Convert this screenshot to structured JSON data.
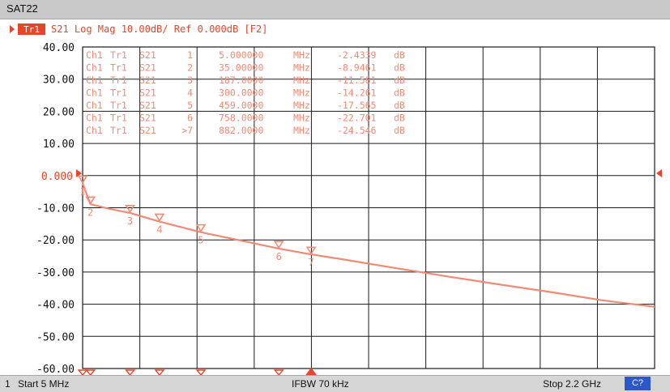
{
  "window": {
    "title": "SAT22"
  },
  "trace_header": {
    "trace_id": "Tr1",
    "text": "S21 Log Mag 10.00dB/ Ref 0.000dB [F2]"
  },
  "marker_table": [
    {
      "ch": "Ch1",
      "tr": "Tr1",
      "param": "S21",
      "num": "1",
      "freq": "5.000000",
      "unit": "MHz",
      "value": "-2.4339",
      "vunit": "dB"
    },
    {
      "ch": "Ch1",
      "tr": "Tr1",
      "param": "S21",
      "num": "2",
      "freq": "35.00000",
      "unit": "MHz",
      "value": "-8.9461",
      "vunit": "dB"
    },
    {
      "ch": "Ch1",
      "tr": "Tr1",
      "param": "S21",
      "num": "3",
      "freq": "187.0000",
      "unit": "MHz",
      "value": "-11.581",
      "vunit": "dB"
    },
    {
      "ch": "Ch1",
      "tr": "Tr1",
      "param": "S21",
      "num": "4",
      "freq": "300.0000",
      "unit": "MHz",
      "value": "-14.261",
      "vunit": "dB"
    },
    {
      "ch": "Ch1",
      "tr": "Tr1",
      "param": "S21",
      "num": "5",
      "freq": "459.0000",
      "unit": "MHz",
      "value": "-17.565",
      "vunit": "dB"
    },
    {
      "ch": "Ch1",
      "tr": "Tr1",
      "param": "S21",
      "num": "6",
      "freq": "758.0000",
      "unit": "MHz",
      "value": "-22.701",
      "vunit": "dB"
    },
    {
      "ch": "Ch1",
      "tr": "Tr1",
      "param": "S21",
      "num": ">7",
      "freq": "882.0000",
      "unit": "MHz",
      "value": "-24.546",
      "vunit": "dB"
    }
  ],
  "status_bar": {
    "channel": "1",
    "start": "Start 5 MHz",
    "ifbw": "IFBW 70 kHz",
    "stop": "Stop 2.2 GHz",
    "badge": "C?"
  },
  "colors": {
    "trace": "#f28a74",
    "grid": "#1a1a1a",
    "background": "#ffffff",
    "badge": "#2d56c8"
  },
  "chart_data": {
    "type": "line",
    "y_ticks": [
      "40.00",
      "30.00",
      "20.00",
      "10.00",
      "0.000",
      "-10.00",
      "-20.00",
      "-30.00",
      "-40.00",
      "-50.00",
      "-60.00"
    ],
    "ylim": [
      -60,
      40
    ],
    "y_step": 10,
    "reference_level": 0,
    "x_range_mhz": [
      5,
      2200
    ],
    "x_divisions": 10,
    "grid": true,
    "series": [
      {
        "x": [
          5,
          35,
          100,
          187,
          300,
          459,
          600,
          758,
          882,
          1000,
          1200,
          1400,
          1600,
          1800,
          2000,
          2200
        ],
        "y": [
          -2.4,
          -8.9,
          -10.2,
          -11.6,
          -14.3,
          -17.6,
          -20.0,
          -22.7,
          -24.5,
          -26.0,
          -28.7,
          -31.3,
          -33.8,
          -36.2,
          -38.8,
          -40.8
        ]
      }
    ],
    "markers": [
      {
        "label": "1",
        "x": 5,
        "y": -2.4339
      },
      {
        "label": "2",
        "x": 35,
        "y": -8.9461
      },
      {
        "label": "3",
        "x": 187,
        "y": -11.581
      },
      {
        "label": "4",
        "x": 300,
        "y": -14.261
      },
      {
        "label": "5",
        "x": 459,
        "y": -17.565
      },
      {
        "label": "6",
        "x": 758,
        "y": -22.701
      },
      {
        "label": "7",
        "x": 882,
        "y": -24.546,
        "active": true
      }
    ]
  }
}
